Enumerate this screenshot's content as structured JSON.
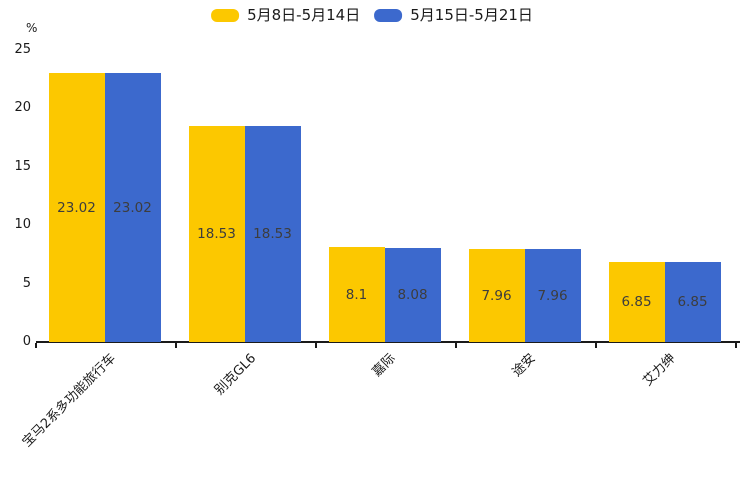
{
  "chart_data": {
    "type": "bar",
    "title": "",
    "ylabel": "%",
    "ylim": [
      0,
      25
    ],
    "yticks": [
      0,
      5,
      10,
      15,
      20,
      25
    ],
    "grid": false,
    "legend_position": "top-center",
    "value_labels": "centered-inside-bars",
    "categories": [
      "宝马2系多功能旅行车",
      "别克GL6",
      "嘉际",
      "途安",
      "艾力绅"
    ],
    "series": [
      {
        "name": "5月8日-5月14日",
        "color": "#FCC800",
        "values": [
          23.02,
          18.53,
          8.1,
          7.96,
          6.85
        ]
      },
      {
        "name": "5月15日-5月21日",
        "color": "#3C69CD",
        "values": [
          23.02,
          18.53,
          8.08,
          7.96,
          6.85
        ]
      }
    ]
  },
  "colors": {
    "series_week1": "#FCC800",
    "series_week2": "#3C69CD",
    "axis": "#1a1a1a",
    "tick_label_text": "#1a1a1a",
    "value_label_text": "#3d3d3d",
    "background": "#ffffff"
  }
}
